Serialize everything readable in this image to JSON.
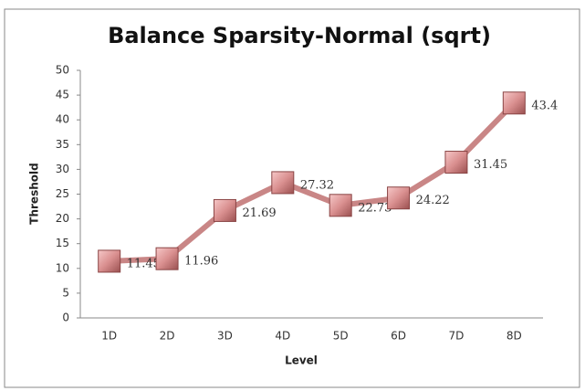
{
  "chart_data": {
    "type": "line",
    "title": "Balance Sparsity-Normal (sqrt)",
    "x_label": "Level",
    "y_label": "Threshold",
    "categories": [
      "1D",
      "2D",
      "3D",
      "4D",
      "5D",
      "6D",
      "7D",
      "8D"
    ],
    "series": [
      {
        "name": "Threshold",
        "color": "#c98686",
        "values": [
          11.45,
          11.96,
          21.69,
          27.32,
          22.73,
          24.22,
          31.45,
          43.4
        ]
      }
    ],
    "ylim": [
      0,
      50
    ],
    "yticks": [
      0,
      5,
      10,
      15,
      20,
      25,
      30,
      35,
      40,
      45,
      50
    ],
    "grid": false
  }
}
